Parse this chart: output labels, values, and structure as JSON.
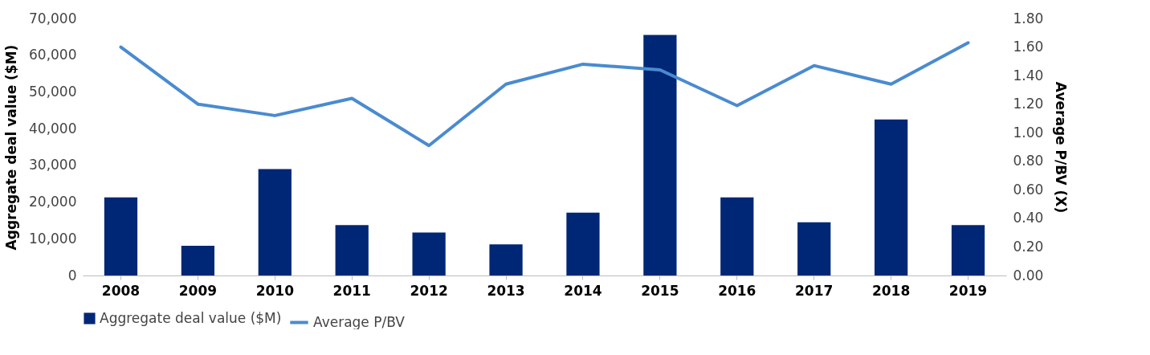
{
  "chart_data": {
    "type": "bar",
    "categories": [
      "2008",
      "2009",
      "2010",
      "2011",
      "2012",
      "2013",
      "2014",
      "2015",
      "2016",
      "2017",
      "2018",
      "2019"
    ],
    "series": [
      {
        "name": "Aggregate deal value ($M)",
        "color": "#002776",
        "values": [
          21300,
          8100,
          29000,
          13700,
          11700,
          8500,
          17100,
          65500,
          21300,
          14500,
          42500,
          13700
        ]
      },
      {
        "name": "Average P/BV",
        "type": "line",
        "axis": "y2",
        "color": "#4a8bd0",
        "values": [
          1.6,
          1.2,
          1.12,
          1.24,
          0.91,
          1.34,
          1.48,
          1.44,
          1.19,
          1.47,
          1.34,
          1.63
        ]
      }
    ],
    "ylabel": "Aggregate deal value ($M)",
    "y2label": "Average P/BV (X)",
    "ylim": [
      0,
      70000
    ],
    "yticks": [
      0,
      {
        "value": 10000,
        "label": "10,000"
      },
      {
        "value": 20000,
        "label": "20,000"
      },
      {
        "value": 30000,
        "label": "30,000"
      },
      {
        "value": 40000,
        "label": "40,000"
      },
      {
        "value": 50000,
        "label": "50,000"
      },
      {
        "value": 60000,
        "label": "60,000"
      },
      {
        "value": 70000,
        "label": "70,000"
      }
    ],
    "y2lim": [
      0,
      1.8
    ],
    "y2ticks": [
      {
        "value": 0,
        "label": "0.00"
      },
      {
        "value": 0.2,
        "label": "0.20"
      },
      {
        "value": 0.4,
        "label": "0.40"
      },
      {
        "value": 0.6,
        "label": "0.60"
      },
      {
        "value": 0.8,
        "label": "0.80"
      },
      {
        "value": 1.0,
        "label": "1.00"
      },
      {
        "value": 1.2,
        "label": "1.20"
      },
      {
        "value": 1.4,
        "label": "1.40"
      },
      {
        "value": 1.6,
        "label": "1.60"
      },
      {
        "value": 1.8,
        "label": "1.80"
      }
    ],
    "legend": "bottom",
    "grid": false
  }
}
